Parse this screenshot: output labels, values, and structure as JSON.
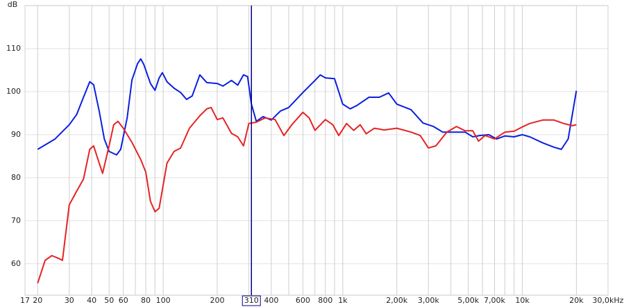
{
  "chart_data": {
    "type": "line",
    "y_label": "dB",
    "xscale": "log",
    "grid": true,
    "xlim": [
      17,
      30000
    ],
    "ylim": [
      52.7,
      120
    ],
    "yticks": [
      60,
      70,
      80,
      90,
      100,
      110
    ],
    "xticks": [
      17,
      20,
      30,
      40,
      50,
      60,
      80,
      100,
      200,
      400,
      600,
      800,
      {
        "value": 1000,
        "label": "1k"
      },
      {
        "value": 2000,
        "label": "2,00k"
      },
      {
        "value": 3000,
        "label": "3,00k"
      },
      {
        "value": 5000,
        "label": "5,00k"
      },
      {
        "value": 7000,
        "label": "7,00k"
      },
      {
        "value": 10000,
        "label": "10k"
      },
      {
        "value": 20000,
        "label": "20k"
      },
      {
        "value": 30000,
        "label": "30,0kHz"
      }
    ],
    "x_minor_grid": [
      70,
      90,
      300,
      500,
      700,
      900,
      4000,
      6000,
      8000,
      9000
    ],
    "cursor_x": 310,
    "cursor_color": "#00008b",
    "series": [
      {
        "color": "#0a1fe0",
        "x": [
          20,
          25,
          30,
          33,
          36,
          39,
          41,
          44,
          47,
          50,
          55,
          58,
          63,
          67,
          72,
          75,
          78,
          85,
          90,
          95,
          99,
          105,
          115,
          125,
          135,
          145,
          160,
          175,
          200,
          215,
          240,
          260,
          280,
          295,
          310,
          330,
          360,
          400,
          450,
          500,
          600,
          700,
          750,
          800,
          900,
          1000,
          1100,
          1200,
          1400,
          1600,
          1800,
          2000,
          2400,
          2800,
          3200,
          3600,
          4200,
          4800,
          5300,
          5800,
          6500,
          7200,
          8000,
          9000,
          10000,
          11000,
          13000,
          15000,
          16500,
          18000,
          20000
        ],
        "values": [
          86.6,
          89,
          92.3,
          94.7,
          98.7,
          102.3,
          101.6,
          95.5,
          89,
          86.1,
          85.3,
          86.6,
          93.9,
          102.7,
          106.5,
          107.6,
          106.3,
          101.9,
          100.3,
          103.2,
          104.4,
          102.3,
          100.8,
          99.8,
          98.2,
          99,
          103.9,
          102.1,
          101.9,
          101.3,
          102.6,
          101.5,
          103.9,
          103.5,
          97.1,
          93.1,
          94.2,
          93.4,
          95.5,
          96.3,
          99.8,
          102.6,
          103.9,
          103.2,
          103,
          97.1,
          96,
          96.8,
          98.7,
          98.7,
          99.7,
          97.1,
          95.8,
          92.7,
          91.9,
          90.6,
          90.6,
          90.6,
          89.5,
          89.8,
          90,
          89,
          89.7,
          89.5,
          90,
          89.5,
          88.1,
          87.1,
          86.6,
          89,
          100.2
        ]
      },
      {
        "color": "#e62222",
        "x": [
          20,
          22,
          24,
          26,
          27.5,
          30,
          33,
          36,
          39,
          41,
          44,
          46,
          50,
          53,
          56,
          60,
          67,
          75,
          80,
          85,
          90,
          95,
          105,
          115,
          125,
          140,
          160,
          175,
          185,
          200,
          215,
          240,
          260,
          280,
          300,
          330,
          370,
          420,
          470,
          520,
          600,
          650,
          700,
          800,
          880,
          950,
          1050,
          1150,
          1250,
          1350,
          1500,
          1700,
          2000,
          2400,
          2700,
          3000,
          3300,
          3800,
          4300,
          4800,
          5300,
          5700,
          6200,
          7000,
          8000,
          9000,
          10000,
          11000,
          13000,
          15000,
          17000,
          19000,
          20000
        ],
        "values": [
          55.5,
          60.8,
          61.9,
          61.3,
          60.8,
          73.7,
          76.9,
          79.7,
          86.6,
          87.4,
          83.4,
          81,
          87.4,
          92.3,
          93.1,
          91.5,
          88.2,
          84.2,
          81.3,
          74.5,
          72.1,
          72.9,
          83.4,
          86.1,
          86.9,
          91.5,
          94.4,
          96,
          96.3,
          93.5,
          93.9,
          90.3,
          89.5,
          87.4,
          92.6,
          92.9,
          93.9,
          93.5,
          89.8,
          92.3,
          95.2,
          93.9,
          91,
          93.5,
          92.3,
          89.8,
          92.6,
          91,
          92.3,
          90.2,
          91.5,
          91.1,
          91.5,
          90.6,
          89.8,
          86.9,
          87.4,
          90.6,
          91.9,
          90.9,
          90.9,
          88.5,
          89.8,
          89,
          90.6,
          90.8,
          91.8,
          92.6,
          93.4,
          93.4,
          92.6,
          92.1,
          92.3
        ]
      }
    ]
  }
}
